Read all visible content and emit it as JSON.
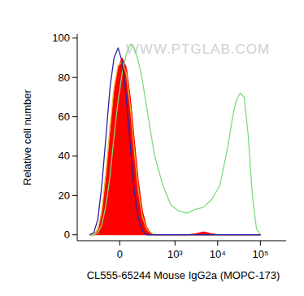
{
  "chart_data": {
    "type": "line",
    "watermark": "WWW.PTGLAB.COM",
    "x_label": "CL555-65244 Mouse IgG2a (MOPC-173)",
    "y_label": "Relative cell number",
    "log": "x",
    "xlim": [
      -500,
      400000
    ],
    "xticks": [
      {
        "value": 0,
        "label": "0"
      },
      {
        "value": 1000,
        "label": "10³"
      },
      {
        "value": 10000,
        "label": "10⁴"
      },
      {
        "value": 100000,
        "label": "10⁵"
      }
    ],
    "ylim": [
      -3,
      102
    ],
    "yticks": [
      0,
      20,
      40,
      60,
      80,
      100
    ],
    "grid": false,
    "x": [
      -250,
      -195,
      -150,
      -115,
      -83,
      -56,
      -32,
      -9,
      13,
      37,
      61,
      89,
      121,
      159,
      205,
      261,
      328,
      517,
      805,
      1250,
      1940,
      3020,
      4670,
      7250,
      11200,
      17400,
      21600,
      26900,
      33500,
      41800,
      52100,
      64900,
      81000,
      101000
    ],
    "series": [
      {
        "type": "area",
        "color": "#ff0000",
        "values": [
          0,
          0,
          2,
          10,
          28,
          50,
          72,
          85,
          90,
          85,
          70,
          48,
          27,
          12,
          4,
          1,
          0,
          0,
          0,
          0,
          0,
          0.5,
          1.5,
          0.5,
          0,
          0,
          0,
          0,
          0,
          0,
          0,
          0,
          0,
          0
        ]
      },
      {
        "type": "line",
        "color": "#f0b030",
        "values": [
          0,
          0,
          3,
          12,
          32,
          55,
          75,
          86,
          88,
          82,
          65,
          42,
          22,
          9,
          3,
          1,
          0,
          0,
          0,
          0,
          0,
          0,
          0,
          0,
          0,
          0,
          0,
          0,
          0,
          0,
          0,
          0,
          0,
          0
        ]
      },
      {
        "type": "line",
        "color": "#7ddc7d",
        "values": [
          0,
          0,
          1,
          5,
          15,
          30,
          50,
          68,
          82,
          92,
          97,
          95,
          88,
          78,
          65,
          52,
          40,
          25,
          15,
          12,
          11,
          13,
          14,
          18,
          25,
          45,
          58,
          68,
          72,
          70,
          50,
          20,
          3,
          0
        ]
      },
      {
        "type": "line",
        "color": "#2424a8",
        "values": [
          0,
          1,
          8,
          25,
          50,
          75,
          90,
          95,
          88,
          70,
          45,
          22,
          8,
          2,
          0,
          0,
          0,
          0,
          0,
          0,
          0,
          0,
          0,
          0,
          0,
          0,
          0,
          0,
          0,
          0,
          0,
          0,
          0,
          0
        ]
      }
    ]
  }
}
